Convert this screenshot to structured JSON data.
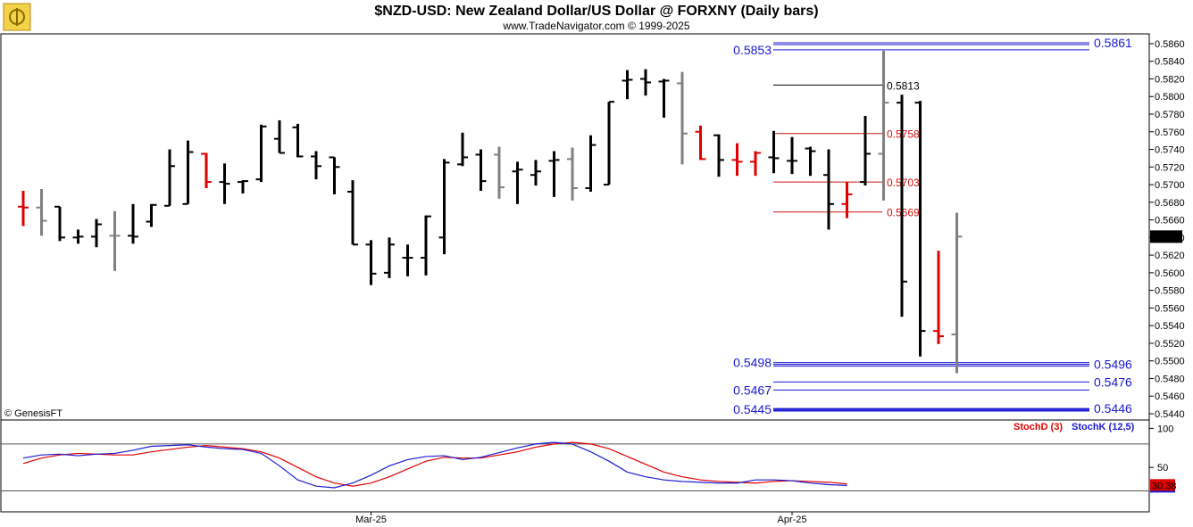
{
  "header": {
    "title": "$NZD-USD:  New Zealand Dollar/US Dollar @ FORXNY  (Daily bars)",
    "subtitle": "www.TradeNavigator.com © 1999-2025"
  },
  "credit": "© GenesisFT",
  "colors": {
    "up_bar": "#000000",
    "down_bar": "#808080",
    "signal_bar": "#e00000",
    "level_blue": "#1a1ad0",
    "level_red": "#d01010",
    "stoch_d": "#e00000",
    "stoch_k": "#1a1ad0",
    "last_price_bg": "#000000"
  },
  "chart_data": [
    {
      "type": "ohlc",
      "title": "$NZD-USD:  New Zealand Dollar/US Dollar @ FORXNY  (Daily bars)",
      "x_ticks": [
        {
          "label": "Mar-25",
          "bar_index": 19
        },
        {
          "label": "Apr-25",
          "bar_index": 42
        }
      ],
      "ylim": [
        0.544,
        0.5865
      ],
      "y_ticks": [
        "0.5860",
        "0.5840",
        "0.5820",
        "0.5800",
        "0.5780",
        "0.5760",
        "0.5740",
        "0.5720",
        "0.5700",
        "0.5680",
        "0.5660",
        "0.5640",
        "0.5620",
        "0.5600",
        "0.5580",
        "0.5560",
        "0.5540",
        "0.5520",
        "0.5500",
        "0.5480",
        "0.5460",
        "0.5440"
      ],
      "last_price_label": "0.5641",
      "last_price": 0.5641,
      "bars": [
        {
          "o": 0.5675,
          "h": 0.5693,
          "l": 0.5653,
          "c": 0.5674,
          "color": "red"
        },
        {
          "o": 0.5674,
          "h": 0.5695,
          "l": 0.5642,
          "c": 0.5659,
          "color": "gray"
        },
        {
          "o": 0.5675,
          "h": 0.5675,
          "l": 0.5636,
          "c": 0.564,
          "color": "black"
        },
        {
          "o": 0.564,
          "h": 0.5649,
          "l": 0.5633,
          "c": 0.5641,
          "color": "black"
        },
        {
          "o": 0.5641,
          "h": 0.5661,
          "l": 0.5629,
          "c": 0.5655,
          "color": "black"
        },
        {
          "o": 0.5642,
          "h": 0.567,
          "l": 0.5602,
          "c": 0.5642,
          "color": "gray"
        },
        {
          "o": 0.5642,
          "h": 0.5678,
          "l": 0.5633,
          "c": 0.5641,
          "color": "black"
        },
        {
          "o": 0.5658,
          "h": 0.5678,
          "l": 0.5652,
          "c": 0.5677,
          "color": "black"
        },
        {
          "o": 0.5676,
          "h": 0.574,
          "l": 0.5676,
          "c": 0.5721,
          "color": "black"
        },
        {
          "o": 0.5678,
          "h": 0.575,
          "l": 0.5678,
          "c": 0.5737,
          "color": "black"
        },
        {
          "o": 0.5735,
          "h": 0.5736,
          "l": 0.5696,
          "c": 0.5703,
          "color": "red"
        },
        {
          "o": 0.5703,
          "h": 0.5724,
          "l": 0.5678,
          "c": 0.5701,
          "color": "black"
        },
        {
          "o": 0.5703,
          "h": 0.5705,
          "l": 0.569,
          "c": 0.5704,
          "color": "black"
        },
        {
          "o": 0.5706,
          "h": 0.5768,
          "l": 0.5703,
          "c": 0.5766,
          "color": "black"
        },
        {
          "o": 0.5752,
          "h": 0.5773,
          "l": 0.5736,
          "c": 0.5736,
          "color": "black"
        },
        {
          "o": 0.5765,
          "h": 0.5769,
          "l": 0.5731,
          "c": 0.5732,
          "color": "black"
        },
        {
          "o": 0.5732,
          "h": 0.5738,
          "l": 0.5706,
          "c": 0.5721,
          "color": "black"
        },
        {
          "o": 0.5731,
          "h": 0.5731,
          "l": 0.5689,
          "c": 0.572,
          "color": "black"
        },
        {
          "o": 0.5692,
          "h": 0.5705,
          "l": 0.5632,
          "c": 0.5632,
          "color": "black"
        },
        {
          "o": 0.5632,
          "h": 0.5637,
          "l": 0.5586,
          "c": 0.5599,
          "color": "black"
        },
        {
          "o": 0.56,
          "h": 0.564,
          "l": 0.5594,
          "c": 0.5632,
          "color": "black"
        },
        {
          "o": 0.5617,
          "h": 0.5632,
          "l": 0.5596,
          "c": 0.5617,
          "color": "black"
        },
        {
          "o": 0.5617,
          "h": 0.5665,
          "l": 0.5597,
          "c": 0.5664,
          "color": "black"
        },
        {
          "o": 0.564,
          "h": 0.5729,
          "l": 0.5621,
          "c": 0.5725,
          "color": "black"
        },
        {
          "o": 0.5723,
          "h": 0.5759,
          "l": 0.5721,
          "c": 0.5731,
          "color": "black"
        },
        {
          "o": 0.5734,
          "h": 0.574,
          "l": 0.5693,
          "c": 0.5704,
          "color": "black"
        },
        {
          "o": 0.5734,
          "h": 0.5743,
          "l": 0.5684,
          "c": 0.5697,
          "color": "gray"
        },
        {
          "o": 0.5715,
          "h": 0.5726,
          "l": 0.5678,
          "c": 0.5717,
          "color": "black"
        },
        {
          "o": 0.5711,
          "h": 0.5728,
          "l": 0.5699,
          "c": 0.5715,
          "color": "black"
        },
        {
          "o": 0.5727,
          "h": 0.5738,
          "l": 0.5686,
          "c": 0.5728,
          "color": "black"
        },
        {
          "o": 0.5729,
          "h": 0.5742,
          "l": 0.5682,
          "c": 0.5696,
          "color": "gray"
        },
        {
          "o": 0.5696,
          "h": 0.5756,
          "l": 0.5692,
          "c": 0.5745,
          "color": "black"
        },
        {
          "o": 0.57,
          "h": 0.5794,
          "l": 0.57,
          "c": 0.5794,
          "color": "black"
        },
        {
          "o": 0.5818,
          "h": 0.583,
          "l": 0.5797,
          "c": 0.5819,
          "color": "black"
        },
        {
          "o": 0.582,
          "h": 0.5831,
          "l": 0.5801,
          "c": 0.5816,
          "color": "black"
        },
        {
          "o": 0.5817,
          "h": 0.582,
          "l": 0.5776,
          "c": 0.5818,
          "color": "black"
        },
        {
          "o": 0.5815,
          "h": 0.5828,
          "l": 0.5723,
          "c": 0.5758,
          "color": "gray"
        },
        {
          "o": 0.576,
          "h": 0.5767,
          "l": 0.5728,
          "c": 0.5729,
          "color": "red"
        },
        {
          "o": 0.5756,
          "h": 0.5757,
          "l": 0.5709,
          "c": 0.5728,
          "color": "black"
        },
        {
          "o": 0.5728,
          "h": 0.5747,
          "l": 0.571,
          "c": 0.5726,
          "color": "red"
        },
        {
          "o": 0.5726,
          "h": 0.5738,
          "l": 0.571,
          "c": 0.5736,
          "color": "red"
        },
        {
          "o": 0.5731,
          "h": 0.5761,
          "l": 0.5713,
          "c": 0.573,
          "color": "black"
        },
        {
          "o": 0.5727,
          "h": 0.5754,
          "l": 0.5712,
          "c": 0.5727,
          "color": "black"
        },
        {
          "o": 0.5741,
          "h": 0.5743,
          "l": 0.571,
          "c": 0.5738,
          "color": "black"
        },
        {
          "o": 0.5711,
          "h": 0.574,
          "l": 0.5649,
          "c": 0.5678,
          "color": "black"
        },
        {
          "o": 0.5678,
          "h": 0.5703,
          "l": 0.5662,
          "c": 0.5689,
          "color": "red"
        },
        {
          "o": 0.5703,
          "h": 0.5778,
          "l": 0.5699,
          "c": 0.5735,
          "color": "black"
        },
        {
          "o": 0.5735,
          "h": 0.5852,
          "l": 0.5682,
          "c": 0.5793,
          "color": "gray"
        },
        {
          "o": 0.5793,
          "h": 0.5802,
          "l": 0.555,
          "c": 0.559,
          "color": "black"
        },
        {
          "o": 0.5793,
          "h": 0.5795,
          "l": 0.5505,
          "c": 0.5534,
          "color": "black"
        },
        {
          "o": 0.5534,
          "h": 0.5625,
          "l": 0.5519,
          "c": 0.5528,
          "color": "red"
        },
        {
          "o": 0.553,
          "h": 0.5668,
          "l": 0.5486,
          "c": 0.5641,
          "color": "gray"
        }
      ],
      "price_levels": [
        {
          "label": "0.5861",
          "value": 0.5861,
          "color": "blue",
          "side": "right",
          "line": "double"
        },
        {
          "label": "0.5853",
          "value": 0.5853,
          "color": "blue",
          "side": "left",
          "line": "single"
        },
        {
          "label": "0.5813",
          "value": 0.5813,
          "color": "black",
          "side": "right",
          "line": "single"
        },
        {
          "label": "0.5758",
          "value": 0.5758,
          "color": "red",
          "side": "right",
          "line": "single"
        },
        {
          "label": "0.5703",
          "value": 0.5703,
          "color": "red",
          "side": "right",
          "line": "single"
        },
        {
          "label": "0.5669",
          "value": 0.5669,
          "color": "red",
          "side": "right",
          "line": "single"
        },
        {
          "label": "0.5498",
          "value": 0.5498,
          "color": "blue",
          "side": "left",
          "line": "double"
        },
        {
          "label": "0.5496",
          "value": 0.5496,
          "color": "blue",
          "side": "right",
          "line": "double"
        },
        {
          "label": "0.5476",
          "value": 0.5476,
          "color": "blue",
          "side": "right",
          "line": "single"
        },
        {
          "label": "0.5467",
          "value": 0.5467,
          "color": "blue",
          "side": "left",
          "line": "single"
        },
        {
          "label": "0.5446",
          "value": 0.5446,
          "color": "blue",
          "side": "right",
          "line": "double"
        },
        {
          "label": "0.5445",
          "value": 0.5445,
          "color": "blue",
          "side": "left",
          "line": "double"
        }
      ]
    },
    {
      "type": "line",
      "legend": [
        {
          "name": "StochD (3)",
          "color": "#e00000"
        },
        {
          "name": "StochK (12,5)",
          "color": "#1a1ad0"
        }
      ],
      "y_ticks": [
        "100",
        "50"
      ],
      "ylim": [
        0,
        105
      ],
      "reference_lines": [
        80,
        20
      ],
      "last_value_label": "30.38",
      "series": [
        {
          "name": "StochD (3)",
          "color": "#e00000",
          "values": [
            55,
            62,
            66,
            68,
            67,
            66,
            66,
            70,
            73,
            76,
            78,
            76,
            74,
            70,
            62,
            50,
            38,
            30,
            26,
            30,
            38,
            48,
            58,
            63,
            62,
            62,
            66,
            70,
            76,
            80,
            82,
            80,
            74,
            64,
            54,
            44,
            38,
            34,
            32,
            31,
            30,
            32,
            33,
            32,
            31,
            29
          ]
        },
        {
          "name": "StochK (12,5)",
          "color": "#1a1ad0",
          "values": [
            62,
            66,
            67,
            65,
            67,
            68,
            72,
            77,
            78,
            79,
            76,
            74,
            73,
            68,
            52,
            34,
            26,
            24,
            30,
            40,
            52,
            60,
            64,
            65,
            60,
            63,
            69,
            75,
            80,
            82,
            80,
            70,
            58,
            44,
            38,
            34,
            32,
            31,
            30,
            30,
            34,
            34,
            33,
            30,
            28,
            27
          ]
        }
      ]
    }
  ]
}
